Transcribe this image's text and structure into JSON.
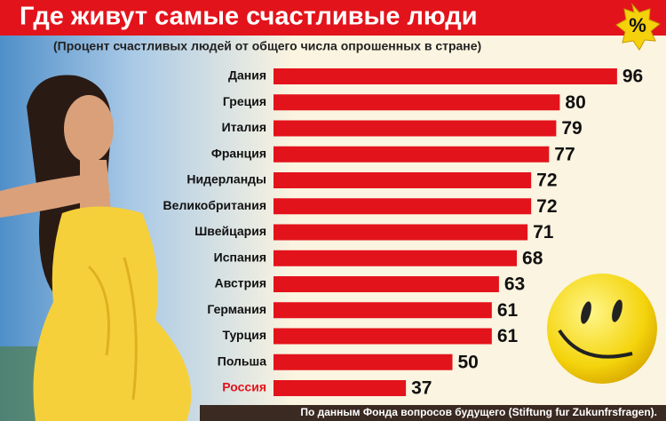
{
  "chart_data": {
    "type": "bar",
    "orientation": "horizontal",
    "title": "Где живут самые счастливые люди",
    "subtitle": "(Процент  счастливых людей от общего числа опрошенных в стране)",
    "badge": "%",
    "source": "По данным Фонда вопросов будущего (Stiftung fur Zukunfrsfragen).",
    "categories": [
      "Дания",
      "Греция",
      "Италия",
      "Франция",
      "Нидерланды",
      "Великобритания",
      "Швейцария",
      "Испания",
      "Австрия",
      "Германия",
      "Турция",
      "Польша",
      "Россия"
    ],
    "values": [
      96,
      80,
      79,
      77,
      72,
      72,
      71,
      68,
      63,
      61,
      61,
      50,
      37
    ],
    "color": "#e3131b"
  }
}
